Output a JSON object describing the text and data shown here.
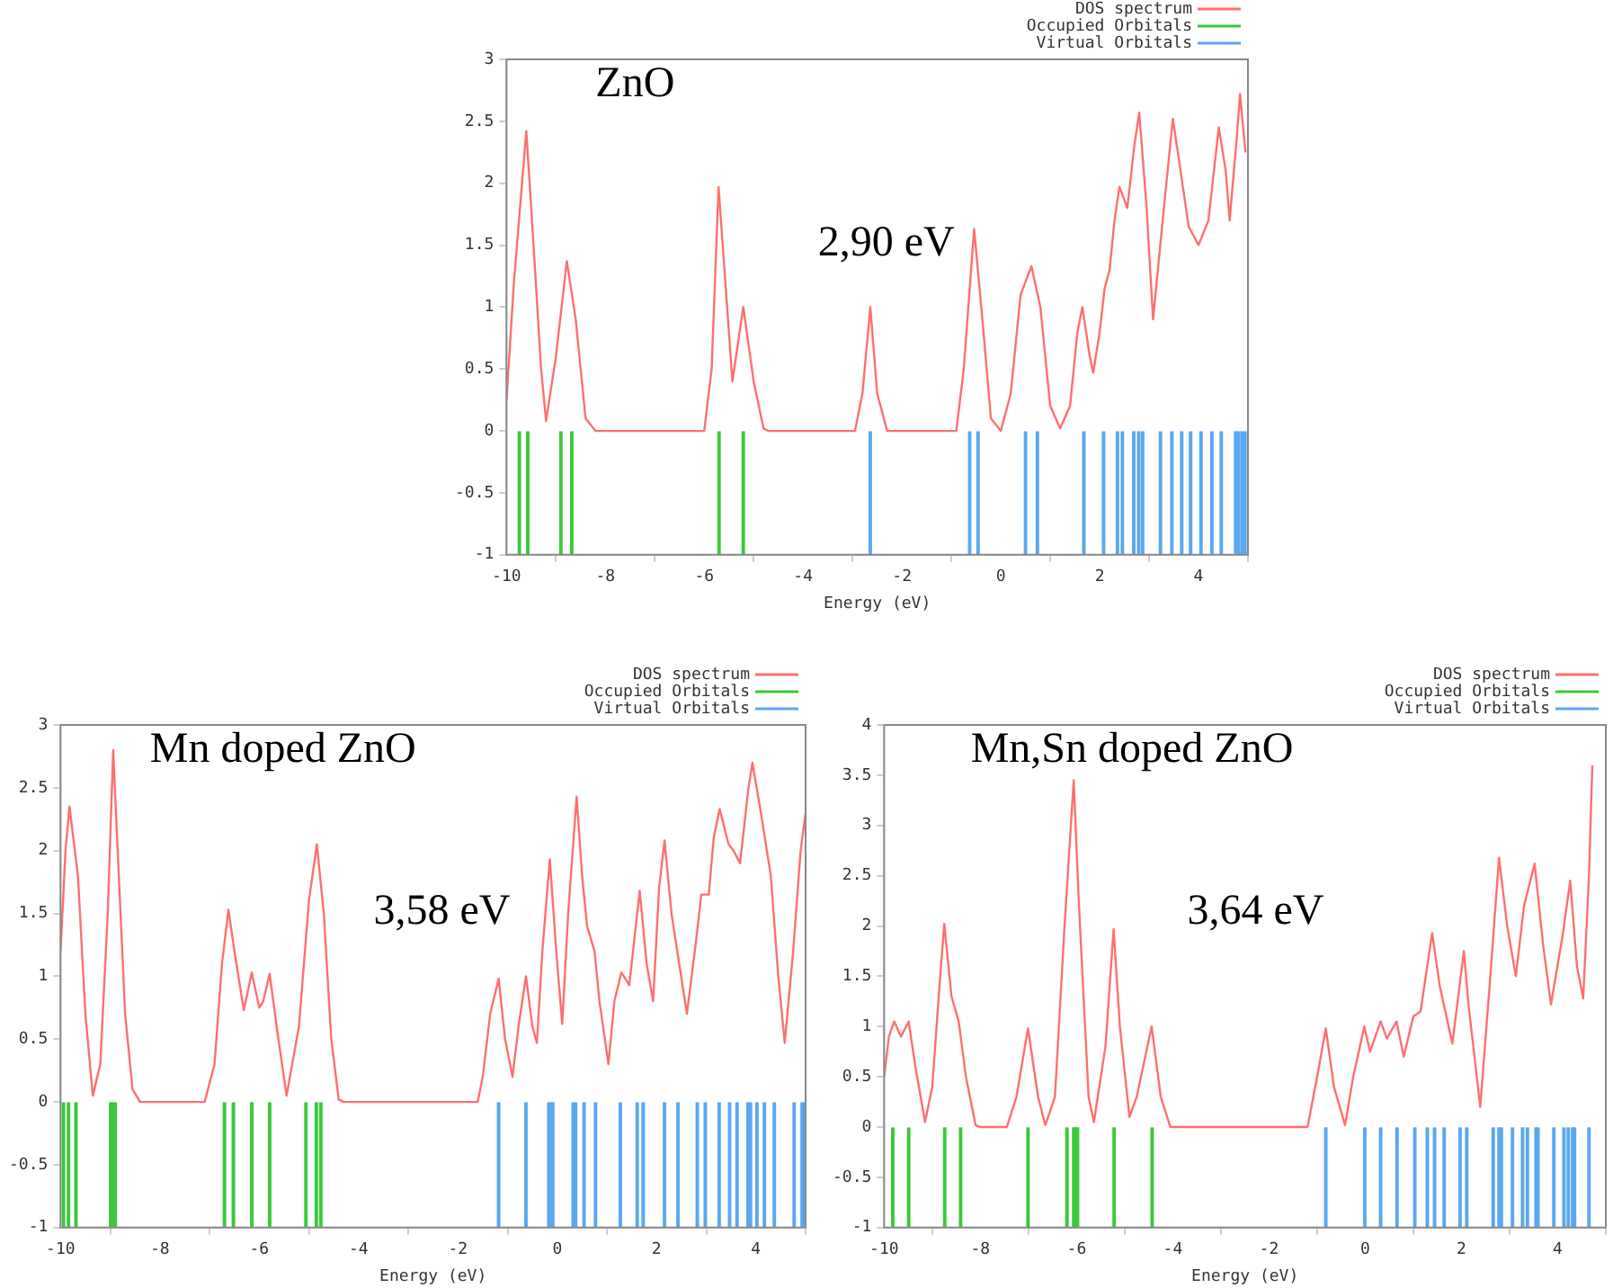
{
  "chart_data": [
    {
      "type": "line",
      "title": "ZnO",
      "xlabel": "Energy (eV)",
      "annotations": [
        "2,90 eV"
      ],
      "xlim": [
        -10,
        5
      ],
      "xticks": [
        -10,
        -8,
        -6,
        -4,
        -2,
        0,
        2,
        4
      ],
      "ylim": [
        -1,
        3
      ],
      "yticks": [
        -1,
        -0.5,
        0,
        0.5,
        1,
        1.5,
        2,
        2.5,
        3
      ],
      "legend": "top right",
      "grid": false,
      "series": [
        {
          "name": "DOS spectrum",
          "color": "#ff6f6f",
          "x": [
            -10,
            -9.85,
            -9.6,
            -9.5,
            -9.3,
            -9.2,
            -9.0,
            -8.78,
            -8.6,
            -8.4,
            -8.2,
            -6.0,
            -5.85,
            -5.71,
            -5.43,
            -5.21,
            -5.0,
            -4.8,
            -4.7,
            -2.95,
            -2.8,
            -2.64,
            -2.5,
            -2.3,
            -0.9,
            -0.75,
            -0.54,
            -0.35,
            -0.2,
            0.0,
            0.2,
            0.4,
            0.62,
            0.8,
            1.0,
            1.2,
            1.4,
            1.55,
            1.65,
            1.8,
            1.87,
            2.0,
            2.1,
            2.2,
            2.3,
            2.4,
            2.56,
            2.7,
            2.8,
            2.95,
            3.08,
            3.25,
            3.48,
            3.6,
            3.8,
            4.0,
            4.2,
            4.41,
            4.55,
            4.63,
            4.78,
            4.84,
            4.95
          ],
          "values": [
            0.25,
            1.2,
            2.42,
            1.8,
            0.5,
            0.08,
            0.6,
            1.37,
            0.9,
            0.1,
            0,
            0,
            0.5,
            1.97,
            0.4,
            1.0,
            0.4,
            0.02,
            0,
            0,
            0.3,
            1.0,
            0.3,
            0,
            0,
            0.5,
            1.63,
            0.8,
            0.1,
            0,
            0.3,
            1.1,
            1.33,
            1.0,
            0.2,
            0.02,
            0.2,
            0.8,
            1.0,
            0.6,
            0.47,
            0.8,
            1.15,
            1.3,
            1.7,
            1.97,
            1.8,
            2.3,
            2.57,
            1.8,
            0.9,
            1.6,
            2.52,
            2.2,
            1.65,
            1.5,
            1.7,
            2.45,
            2.1,
            1.7,
            2.4,
            2.72,
            2.25
          ]
        },
        {
          "name": "Occupied Orbitals",
          "type": "bar",
          "color": "#3cc83c",
          "x": [
            -9.74,
            -9.57,
            -8.9,
            -8.68,
            -5.7,
            -5.21
          ],
          "values": [
            -1,
            -1,
            -1,
            -1,
            -1,
            -1
          ]
        },
        {
          "name": "Virtual Orbitals",
          "type": "bar",
          "color": "#5aa8f0",
          "x": [
            -2.64,
            -0.63,
            -0.46,
            0.5,
            0.74,
            1.68,
            2.08,
            2.36,
            2.46,
            2.69,
            2.79,
            2.87,
            3.23,
            3.46,
            3.66,
            3.84,
            4.05,
            4.27,
            4.46,
            4.75,
            4.81,
            4.88,
            4.94
          ],
          "values": [
            -1,
            -1,
            -1,
            -1,
            -1,
            -1,
            -1,
            -1,
            -1,
            -1,
            -1,
            -1,
            -1,
            -1,
            -1,
            -1,
            -1,
            -1,
            -1,
            -1,
            -1,
            -1,
            -1
          ]
        }
      ]
    },
    {
      "type": "line",
      "title": "Mn doped ZnO",
      "xlabel": "Energy (eV)",
      "annotations": [
        "3,58 eV"
      ],
      "xlim": [
        -10,
        5
      ],
      "xticks": [
        -10,
        -8,
        -6,
        -4,
        -2,
        0,
        2,
        4
      ],
      "ylim": [
        -1,
        3
      ],
      "yticks": [
        -1,
        -0.5,
        0,
        0.5,
        1,
        1.5,
        2,
        2.5,
        3
      ],
      "legend": "top right",
      "grid": false,
      "series": [
        {
          "name": "DOS spectrum",
          "color": "#ff6f6f",
          "x": [
            -10,
            -9.9,
            -9.82,
            -9.65,
            -9.5,
            -9.35,
            -9.2,
            -9.05,
            -8.94,
            -8.85,
            -8.7,
            -8.55,
            -8.4,
            -7.1,
            -6.9,
            -6.75,
            -6.62,
            -6.5,
            -6.31,
            -6.15,
            -6.0,
            -5.92,
            -5.79,
            -5.65,
            -5.45,
            -5.2,
            -5.0,
            -4.84,
            -4.7,
            -4.55,
            -4.4,
            -4.3,
            -1.6,
            -1.5,
            -1.35,
            -1.18,
            -1.05,
            -0.9,
            -0.78,
            -0.63,
            -0.5,
            -0.41,
            -0.3,
            -0.15,
            -0.02,
            0.1,
            0.22,
            0.39,
            0.5,
            0.6,
            0.75,
            0.85,
            1.03,
            1.15,
            1.29,
            1.45,
            1.66,
            1.8,
            1.93,
            2.05,
            2.16,
            2.3,
            2.61,
            2.8,
            2.9,
            3.05,
            3.15,
            3.27,
            3.45,
            3.55,
            3.68,
            3.85,
            3.93,
            4.1,
            4.3,
            4.45,
            4.58,
            4.75,
            4.9,
            5.0
          ],
          "values": [
            1.2,
            2.0,
            2.35,
            1.8,
            0.7,
            0.05,
            0.3,
            1.5,
            2.8,
            2.0,
            0.7,
            0.1,
            0,
            0,
            0.3,
            1.1,
            1.53,
            1.2,
            0.73,
            1.03,
            0.75,
            0.8,
            1.02,
            0.6,
            0.05,
            0.6,
            1.6,
            2.05,
            1.5,
            0.5,
            0.02,
            0,
            0,
            0.2,
            0.7,
            0.98,
            0.5,
            0.2,
            0.6,
            1.0,
            0.6,
            0.47,
            1.2,
            1.93,
            1.2,
            0.62,
            1.5,
            2.43,
            1.8,
            1.4,
            1.2,
            0.8,
            0.3,
            0.8,
            1.03,
            0.93,
            1.68,
            1.1,
            0.8,
            1.7,
            2.08,
            1.5,
            0.7,
            1.3,
            1.65,
            1.65,
            2.1,
            2.33,
            2.05,
            2.0,
            1.9,
            2.5,
            2.7,
            2.3,
            1.8,
            1.0,
            0.47,
            1.2,
            2.0,
            2.3
          ]
        },
        {
          "name": "Occupied Orbitals",
          "type": "bar",
          "color": "#3cc83c",
          "x": [
            -9.94,
            -9.84,
            -9.69,
            -8.99,
            -8.95,
            -8.9,
            -6.7,
            -6.52,
            -6.15,
            -5.79,
            -5.06,
            -4.85,
            -4.76
          ],
          "values": [
            -1,
            -1,
            -1,
            -1,
            -1,
            -1,
            -1,
            -1,
            -1,
            -1,
            -1,
            -1,
            -1
          ]
        },
        {
          "name": "Virtual Orbitals",
          "type": "bar",
          "color": "#5aa8f0",
          "x": [
            -1.18,
            -0.63,
            -0.17,
            -0.13,
            -0.09,
            0.32,
            0.37,
            0.54,
            0.77,
            1.27,
            1.61,
            1.73,
            2.16,
            2.43,
            2.82,
            2.98,
            3.26,
            3.47,
            3.62,
            3.84,
            3.89,
            4.02,
            4.17,
            4.37,
            4.77,
            4.93,
            4.97
          ],
          "values": [
            -1,
            -1,
            -1,
            -1,
            -1,
            -1,
            -1,
            -1,
            -1,
            -1,
            -1,
            -1,
            -1,
            -1,
            -1,
            -1,
            -1,
            -1,
            -1,
            -1,
            -1,
            -1,
            -1,
            -1,
            -1,
            -1,
            -1
          ]
        }
      ]
    },
    {
      "type": "line",
      "title": "Mn,Sn doped ZnO",
      "xlabel": "Energy (eV)",
      "annotations": [
        "3,64 eV"
      ],
      "xlim": [
        -10,
        5
      ],
      "xticks": [
        -10,
        -8,
        -6,
        -4,
        -2,
        0,
        2,
        4
      ],
      "ylim": [
        -1,
        4
      ],
      "yticks": [
        -1,
        -0.5,
        0,
        0.5,
        1,
        1.5,
        2,
        2.5,
        3,
        3.5,
        4
      ],
      "legend": "top right",
      "grid": false,
      "series": [
        {
          "name": "DOS spectrum",
          "color": "#ff6f6f",
          "x": [
            -10,
            -9.9,
            -9.79,
            -9.65,
            -9.49,
            -9.35,
            -9.15,
            -9.0,
            -8.85,
            -8.75,
            -8.6,
            -8.45,
            -8.3,
            -8.1,
            -8.0,
            -7.45,
            -7.25,
            -7.01,
            -6.8,
            -6.65,
            -6.45,
            -6.25,
            -6.06,
            -5.95,
            -5.75,
            -5.64,
            -5.4,
            -5.23,
            -5.1,
            -4.9,
            -4.75,
            -4.44,
            -4.25,
            -4.05,
            -1.2,
            -1.0,
            -0.82,
            -0.65,
            -0.42,
            -0.25,
            -0.02,
            0.1,
            0.32,
            0.45,
            0.65,
            0.8,
            1.0,
            1.15,
            1.39,
            1.55,
            1.81,
            2.05,
            2.15,
            2.39,
            2.6,
            2.78,
            2.95,
            3.13,
            3.3,
            3.52,
            3.7,
            3.86,
            4.1,
            4.26,
            4.4,
            4.53,
            4.65,
            4.72
          ],
          "values": [
            0.5,
            0.9,
            1.05,
            0.9,
            1.05,
            0.6,
            0.05,
            0.4,
            1.4,
            2.02,
            1.3,
            1.05,
            0.5,
            0.02,
            0,
            0,
            0.3,
            0.98,
            0.3,
            0.02,
            0.3,
            2.0,
            3.45,
            2.2,
            0.3,
            0.05,
            0.8,
            1.97,
            1.0,
            0.1,
            0.3,
            1.0,
            0.3,
            0,
            0,
            0.5,
            0.98,
            0.4,
            0.02,
            0.5,
            1.0,
            0.75,
            1.05,
            0.88,
            1.05,
            0.7,
            1.1,
            1.15,
            1.93,
            1.4,
            0.83,
            1.75,
            1.2,
            0.2,
            1.5,
            2.68,
            2.0,
            1.5,
            2.2,
            2.62,
            1.8,
            1.22,
            1.9,
            2.45,
            1.6,
            1.28,
            2.5,
            3.6
          ]
        },
        {
          "name": "Occupied Orbitals",
          "type": "bar",
          "color": "#3cc83c",
          "x": [
            -9.82,
            -9.49,
            -8.74,
            -8.41,
            -7.01,
            -6.2,
            -6.06,
            -6.02,
            -5.98,
            -5.22,
            -4.43
          ],
          "values": [
            -1,
            -1,
            -1,
            -1,
            -1,
            -1,
            -1,
            -1,
            -1,
            -1,
            -1
          ]
        },
        {
          "name": "Virtual Orbitals",
          "type": "bar",
          "color": "#5aa8f0",
          "x": [
            -0.82,
            -0.01,
            0.32,
            0.66,
            1.03,
            1.29,
            1.44,
            1.64,
            1.97,
            2.11,
            2.66,
            2.78,
            2.83,
            3.06,
            3.27,
            3.37,
            3.55,
            3.59,
            3.92,
            4.13,
            4.22,
            4.31,
            4.35,
            4.65
          ],
          "values": [
            -1,
            -1,
            -1,
            -1,
            -1,
            -1,
            -1,
            -1,
            -1,
            -1,
            -1,
            -1,
            -1,
            -1,
            -1,
            -1,
            -1,
            -1,
            -1,
            -1,
            -1,
            -1,
            -1,
            -1
          ]
        }
      ]
    }
  ]
}
